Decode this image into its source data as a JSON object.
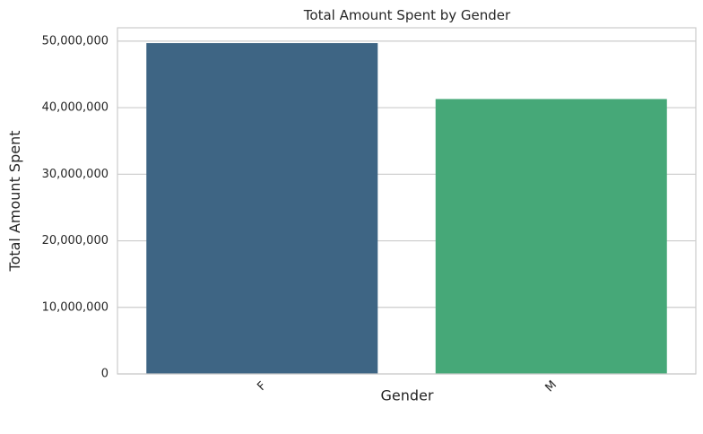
{
  "chart_data": {
    "type": "bar",
    "title": "Total Amount Spent by Gender",
    "xlabel": "Gender",
    "ylabel": "Total Amount Spent",
    "categories": [
      "F",
      "M"
    ],
    "values": [
      49700000,
      41300000
    ],
    "ylim": [
      0,
      52000000
    ],
    "yticks": [
      0,
      10000000,
      20000000,
      30000000,
      40000000,
      50000000
    ],
    "ytick_labels": [
      "0",
      "10,000,000",
      "20,000,000",
      "30,000,000",
      "40,000,000",
      "50,000,000"
    ],
    "colors": [
      "#3e6584",
      "#46a878"
    ],
    "grid": "horizontal",
    "xtick_rotation": -45
  }
}
